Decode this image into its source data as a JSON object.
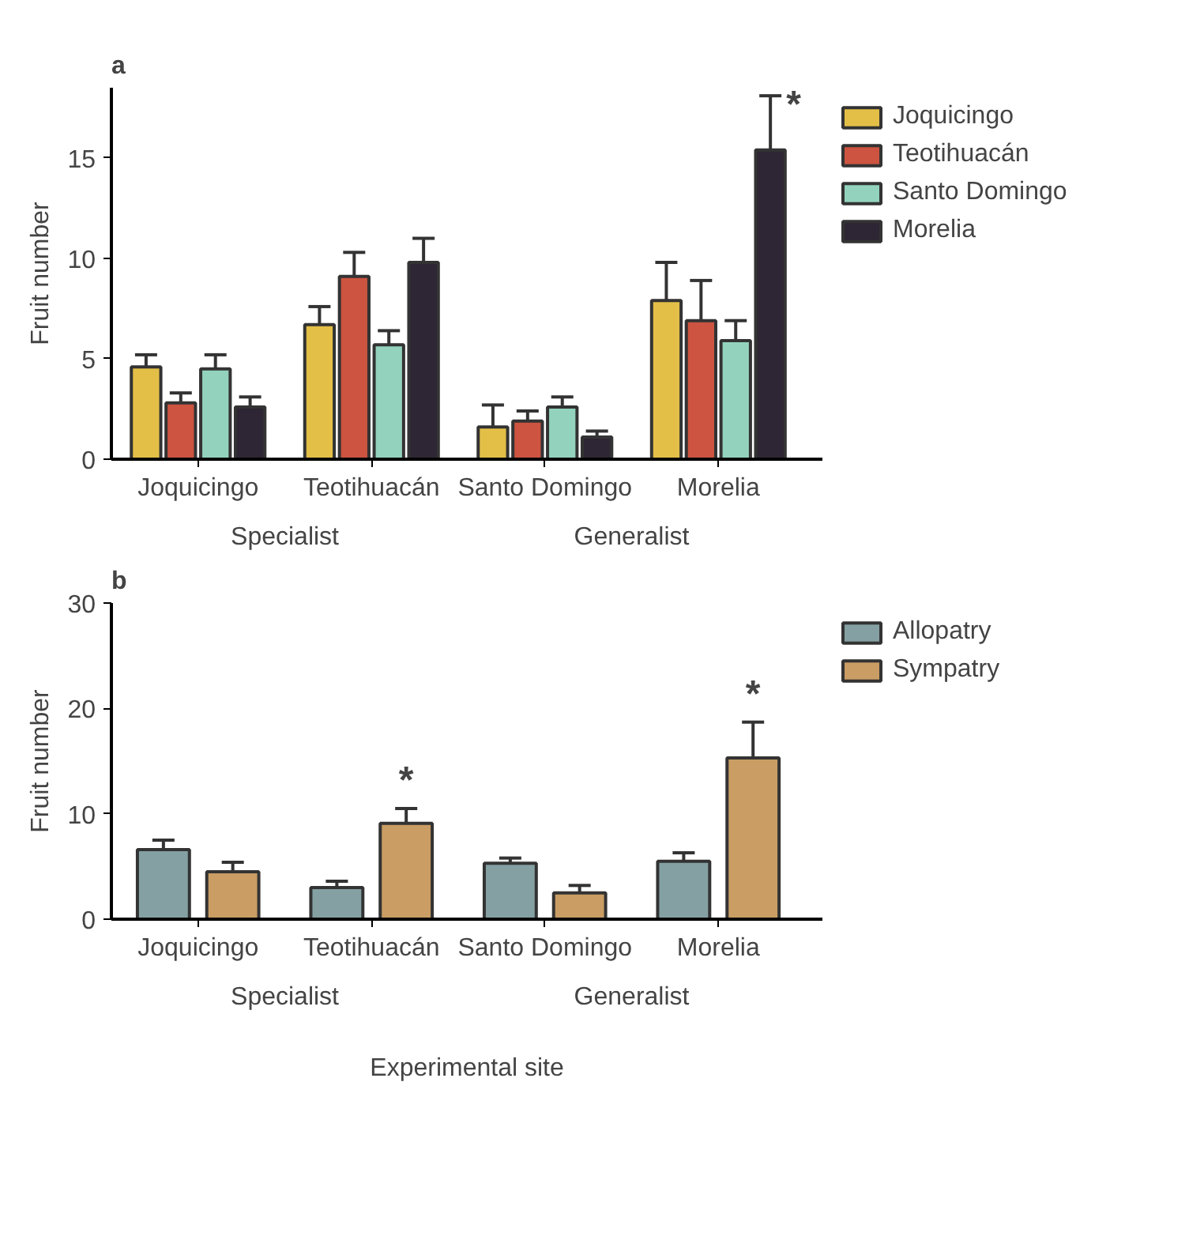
{
  "chart_data": [
    {
      "type": "bar",
      "title": "a",
      "ylabel": "Fruit number",
      "categories": [
        "Joquicingo",
        "Teotihuacán",
        "Santo Domingo",
        "Morelia"
      ],
      "ylim": [
        0,
        18.5
      ],
      "yticks": [
        0,
        5,
        10,
        15
      ],
      "legend": "top right",
      "grid": false,
      "series": [
        {
          "name": "Joquicingo",
          "color": "#e3bf47",
          "values": [
            4.6,
            6.7,
            1.6,
            7.9
          ],
          "errors": [
            [
              4.6,
              5.2
            ],
            [
              6.7,
              7.6
            ],
            [
              1.6,
              2.7
            ],
            [
              7.9,
              9.8
            ]
          ]
        },
        {
          "name": "Teotihuacán",
          "color": "#cc5440",
          "values": [
            2.8,
            9.1,
            1.9,
            6.9
          ],
          "errors": [
            [
              2.8,
              3.3
            ],
            [
              9.1,
              10.3
            ],
            [
              1.9,
              2.4
            ],
            [
              6.9,
              8.9
            ]
          ]
        },
        {
          "name": "Santo Domingo",
          "color": "#93d3bd",
          "values": [
            4.5,
            5.7,
            2.6,
            5.9
          ],
          "errors": [
            [
              4.5,
              5.2
            ],
            [
              5.7,
              6.4
            ],
            [
              2.6,
              3.1
            ],
            [
              5.9,
              6.9
            ]
          ]
        },
        {
          "name": "Morelia",
          "color": "#2e2634",
          "values": [
            2.6,
            9.8,
            1.1,
            15.4
          ],
          "errors": [
            [
              2.6,
              3.1
            ],
            [
              9.8,
              11.0
            ],
            [
              1.1,
              1.4
            ],
            [
              15.4,
              18.1
            ]
          ]
        }
      ],
      "annotations": [
        "*",
        "Specialist",
        "Generalist"
      ]
    },
    {
      "type": "bar",
      "title": "b",
      "ylabel": "Fruit number",
      "xlabel": "Experimental site",
      "categories": [
        "Joquicingo",
        "Teotihuacán",
        "Santo Domingo",
        "Morelia"
      ],
      "ylim": [
        0,
        30
      ],
      "yticks": [
        0,
        10,
        20,
        30
      ],
      "legend": "top right",
      "grid": false,
      "series": [
        {
          "name": "Allopatry",
          "color": "#84a0a3",
          "values": [
            6.6,
            3.0,
            5.3,
            5.5
          ],
          "errors": [
            [
              6.6,
              7.5
            ],
            [
              3.0,
              3.6
            ],
            [
              5.3,
              5.8
            ],
            [
              5.5,
              6.3
            ]
          ]
        },
        {
          "name": "Sympatry",
          "color": "#c99d64",
          "values": [
            4.5,
            9.1,
            2.5,
            15.3
          ],
          "errors": [
            [
              4.5,
              5.4
            ],
            [
              9.1,
              10.5
            ],
            [
              2.5,
              3.2
            ],
            [
              15.3,
              18.7
            ]
          ]
        }
      ],
      "annotations": [
        "*",
        "*",
        "Specialist",
        "Generalist"
      ]
    }
  ]
}
